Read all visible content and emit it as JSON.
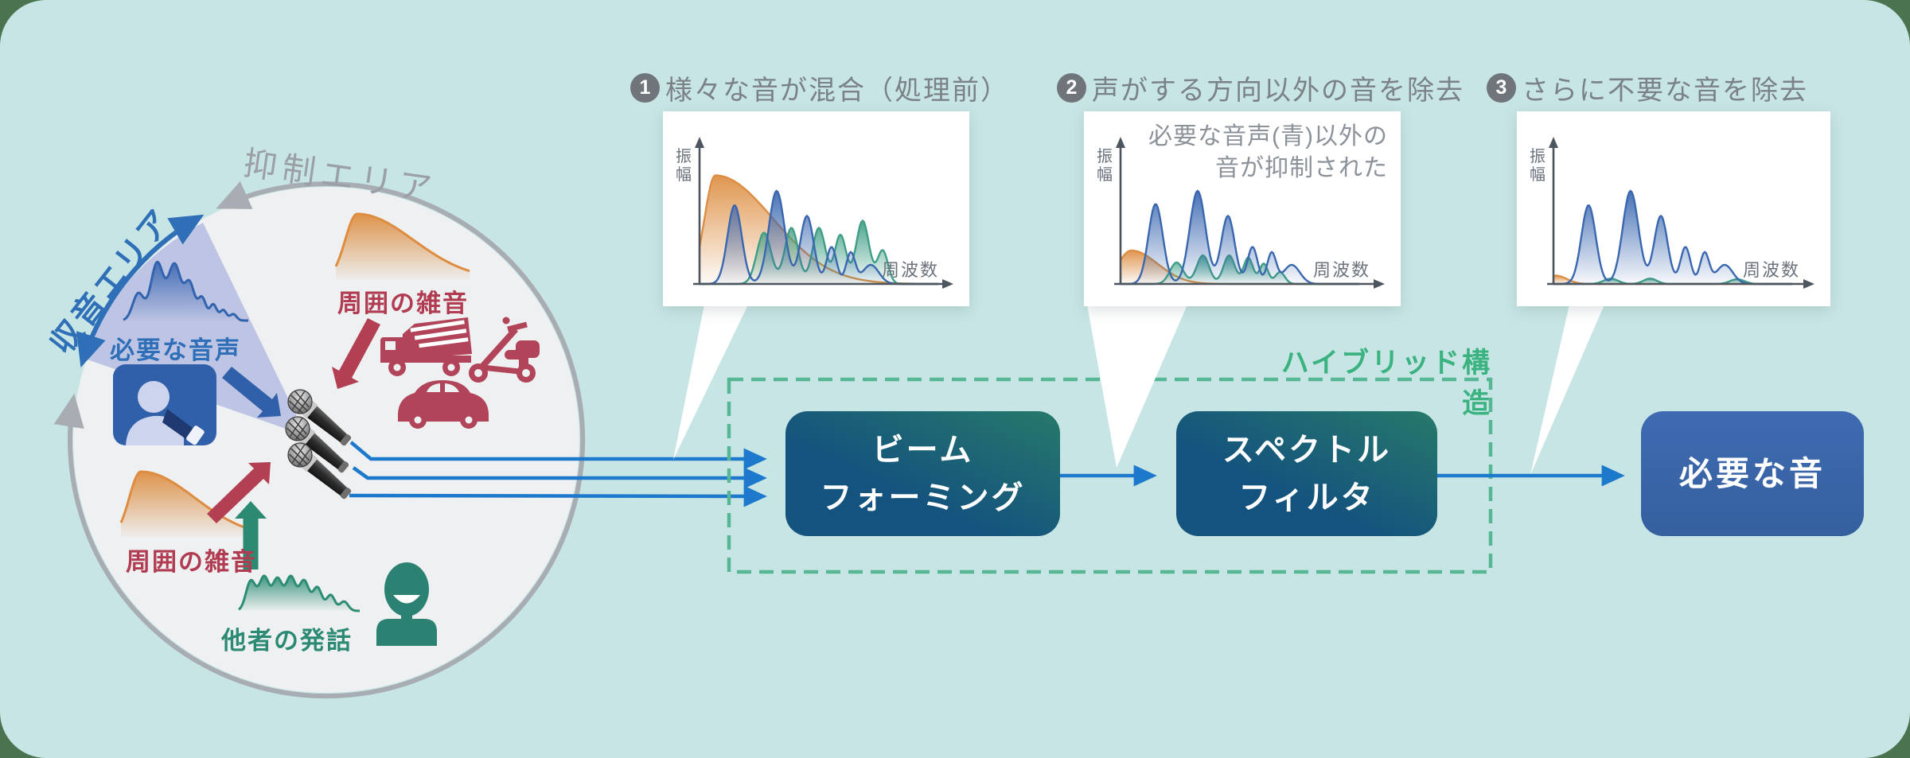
{
  "colors": {
    "page_outside": "#4a7350",
    "canvas_bg": "#c7e5e4",
    "circle_fill": "#eef0f1",
    "pickup_wedge": "#b9c0e3",
    "suppression_gray": "#9aa0a6",
    "pickup_blue": "#2e6fb7",
    "voice_blue": "#3a67b0",
    "noise_red": "#b2445a",
    "noise_red_text": "#b13c52",
    "noise_orange": "#dd8e42",
    "speech_green": "#2b8a74",
    "mic_line_blue": "#1d79cc",
    "dashed_green": "#57b795",
    "hybrid_green": "#3bb381",
    "box_gradient_teal_top": "#27796a",
    "box_gradient_blue_bottom": "#14537e",
    "output_box_blue": "#3a66ae",
    "step_text_gray": "#7b8287"
  },
  "area_diagram": {
    "suppression_area_label": "抑制エリア",
    "pickup_area_label": "収音エリア",
    "necessary_voice_label": "必要な音声",
    "ambient_noise_top_label": "周囲の雑音",
    "ambient_noise_bottom_label": "周囲の雑音",
    "others_speech_label": "他者の発話"
  },
  "steps": [
    {
      "num": "1",
      "label": "様々な音が混合（処理前）"
    },
    {
      "num": "2",
      "label": "声がする方向以外の音を除去"
    },
    {
      "num": "3",
      "label": "さらに不要な音を除去"
    }
  ],
  "flow": {
    "hybrid_structure_label": "ハイブリッド構造",
    "beamforming_label": "ビーム\nフォーミング",
    "spectral_filter_label": "スペクトル\nフィルタ",
    "output_label": "必要な音"
  },
  "chart_data": [
    {
      "type": "area",
      "title": "様々な音が混合（処理前）",
      "xlabel": "周波数",
      "ylabel": "振幅",
      "grid": false,
      "note": [],
      "series": [
        {
          "name": "周囲の雑音(橙)",
          "color": "#dd8e42",
          "components": [
            {
              "c": 0.066,
              "h": 0.91,
              "wl": 0.045,
              "wr": 0.24
            }
          ]
        },
        {
          "name": "他者の発話(緑)",
          "color": "#3f9e85",
          "components": [
            {
              "c": 0.27,
              "h": 0.43,
              "w": 0.03
            },
            {
              "c": 0.385,
              "h": 0.47,
              "w": 0.028
            },
            {
              "c": 0.5,
              "h": 0.47,
              "w": 0.027
            },
            {
              "c": 0.59,
              "h": 0.41,
              "w": 0.024
            },
            {
              "c": 0.683,
              "h": 0.53,
              "w": 0.027
            },
            {
              "c": 0.767,
              "h": 0.28,
              "w": 0.022
            }
          ]
        },
        {
          "name": "必要な音声(青)",
          "color": "#3a67b0",
          "components": [
            {
              "c": 0.147,
              "h": 0.66,
              "w": 0.03
            },
            {
              "c": 0.323,
              "h": 0.78,
              "w": 0.033
            },
            {
              "c": 0.45,
              "h": 0.57,
              "w": 0.028
            },
            {
              "c": 0.553,
              "h": 0.31,
              "w": 0.021
            },
            {
              "c": 0.633,
              "h": 0.26,
              "w": 0.019
            },
            {
              "c": 0.717,
              "h": 0.16,
              "w": 0.034
            }
          ]
        }
      ]
    },
    {
      "type": "area",
      "title": "声がする方向以外の音を除去",
      "xlabel": "周波数",
      "ylabel": "振幅",
      "grid": false,
      "note": [
        "必要な音声(青)以外の",
        "音が抑制された"
      ],
      "series": [
        {
          "name": "周囲の雑音(橙)",
          "color": "#dd8e42",
          "components": [
            {
              "c": 0.045,
              "h": 0.28,
              "wl": 0.055,
              "wr": 0.11
            }
          ]
        },
        {
          "name": "他者の発話(緑)",
          "color": "#3f9e85",
          "components": [
            {
              "c": 0.235,
              "h": 0.18,
              "w": 0.028
            },
            {
              "c": 0.345,
              "h": 0.24,
              "w": 0.026
            },
            {
              "c": 0.455,
              "h": 0.24,
              "w": 0.024
            },
            {
              "c": 0.535,
              "h": 0.22,
              "w": 0.02
            },
            {
              "c": 0.6,
              "h": 0.17,
              "w": 0.018
            },
            {
              "c": 0.668,
              "h": 0.1,
              "w": 0.02
            }
          ]
        },
        {
          "name": "必要な音声(青)",
          "color": "#3a67b0",
          "components": [
            {
              "c": 0.147,
              "h": 0.67,
              "w": 0.03
            },
            {
              "c": 0.323,
              "h": 0.78,
              "w": 0.033
            },
            {
              "c": 0.45,
              "h": 0.57,
              "w": 0.028
            },
            {
              "c": 0.553,
              "h": 0.31,
              "w": 0.021
            },
            {
              "c": 0.633,
              "h": 0.26,
              "w": 0.019
            },
            {
              "c": 0.717,
              "h": 0.16,
              "w": 0.034
            }
          ]
        }
      ]
    },
    {
      "type": "area",
      "title": "さらに不要な音を除去",
      "xlabel": "周波数",
      "ylabel": "振幅",
      "grid": false,
      "note": [],
      "series": [
        {
          "name": "周囲の雑音(橙)",
          "color": "#dd8e42",
          "components": [
            {
              "c": 0.01,
              "h": 0.07,
              "wl": 0.02,
              "wr": 0.045
            }
          ]
        },
        {
          "name": "他者の発話(緑)",
          "color": "#3f9e85",
          "components": [
            {
              "c": 0.24,
              "h": 0.045,
              "w": 0.03
            },
            {
              "c": 0.405,
              "h": 0.045,
              "w": 0.028
            },
            {
              "c": 0.77,
              "h": 0.04,
              "w": 0.03
            }
          ]
        },
        {
          "name": "必要な音声(青)",
          "color": "#3a67b0",
          "components": [
            {
              "c": 0.147,
              "h": 0.66,
              "w": 0.03
            },
            {
              "c": 0.323,
              "h": 0.78,
              "w": 0.033
            },
            {
              "c": 0.45,
              "h": 0.57,
              "w": 0.028
            },
            {
              "c": 0.553,
              "h": 0.31,
              "w": 0.021
            },
            {
              "c": 0.633,
              "h": 0.26,
              "w": 0.019
            },
            {
              "c": 0.717,
              "h": 0.16,
              "w": 0.034
            }
          ]
        }
      ]
    }
  ]
}
